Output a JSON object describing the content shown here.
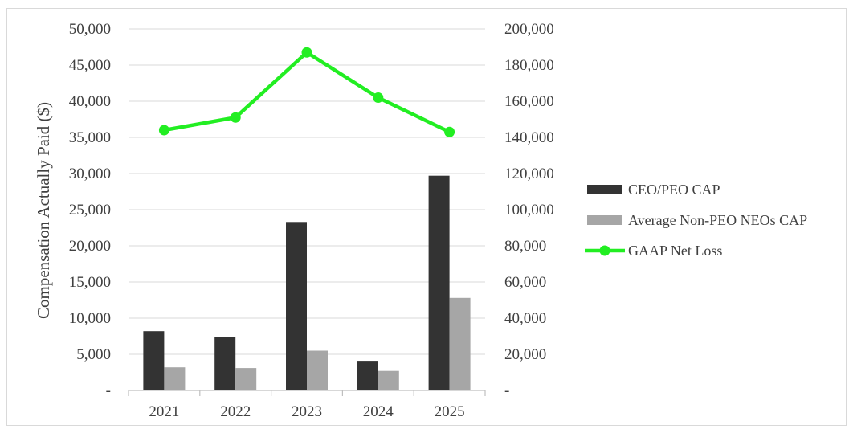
{
  "chart_data": {
    "type": "bar",
    "categories": [
      "2021",
      "2022",
      "2023",
      "2024",
      "2025"
    ],
    "series": [
      {
        "name": "CEO/PEO CAP",
        "kind": "bar",
        "axis": "left",
        "color": "#333333",
        "values": [
          8200,
          7400,
          23300,
          4100,
          29700
        ]
      },
      {
        "name": "Average Non-PEO NEOs CAP",
        "kind": "bar",
        "axis": "left",
        "color": "#a6a6a6",
        "values": [
          3200,
          3100,
          5500,
          2700,
          12800
        ]
      },
      {
        "name": "GAAP Net Loss",
        "kind": "line",
        "axis": "right",
        "color": "#22ee22",
        "values": [
          144000,
          151000,
          187000,
          162000,
          143000
        ]
      }
    ],
    "ylabel": "Compensation Actually Paid ($)",
    "ylim": [
      0,
      50000
    ],
    "y2lim": [
      0,
      200000
    ],
    "left_ticks": [
      "-",
      "5,000",
      "10,000",
      "15,000",
      "20,000",
      "25,000",
      "30,000",
      "35,000",
      "40,000",
      "45,000",
      "50,000"
    ],
    "right_ticks": [
      "-",
      "20,000",
      "40,000",
      "60,000",
      "80,000",
      "100,000",
      "120,000",
      "140,000",
      "160,000",
      "180,000",
      "200,000"
    ],
    "grid": true,
    "legend_position": "right"
  }
}
